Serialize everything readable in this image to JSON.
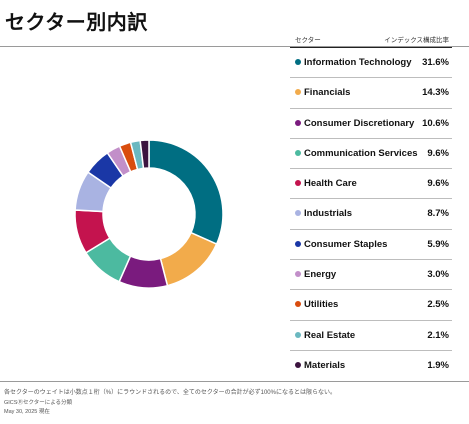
{
  "title": "セクター別内訳",
  "table": {
    "header_sector": "セクター",
    "header_weight": "インデックス構成比率"
  },
  "chart_data": {
    "type": "pie",
    "start_angle_deg": 0,
    "direction": "clockwise",
    "slices": [
      {
        "label": "Information Technology",
        "value": 31.6,
        "display": "31.6%",
        "color": "#006e82"
      },
      {
        "label": "Financials",
        "value": 14.3,
        "display": "14.3%",
        "color": "#f2ab4b"
      },
      {
        "label": "Consumer Discretionary",
        "value": 10.6,
        "display": "10.6%",
        "color": "#7a1b7e"
      },
      {
        "label": "Communication Services",
        "value": 9.6,
        "display": "9.6%",
        "color": "#4cbaa0"
      },
      {
        "label": "Health Care",
        "value": 9.6,
        "display": "9.6%",
        "color": "#c4134e"
      },
      {
        "label": "Industrials",
        "value": 8.7,
        "display": "8.7%",
        "color": "#a9b3e2"
      },
      {
        "label": "Consumer Staples",
        "value": 5.9,
        "display": "5.9%",
        "color": "#1a37a6"
      },
      {
        "label": "Energy",
        "value": 3.0,
        "display": "3.0%",
        "color": "#c28fc9"
      },
      {
        "label": "Utilities",
        "value": 2.5,
        "display": "2.5%",
        "color": "#d94d0e"
      },
      {
        "label": "Real Estate",
        "value": 2.1,
        "display": "2.1%",
        "color": "#6bb8c0"
      },
      {
        "label": "Materials",
        "value": 1.9,
        "display": "1.9%",
        "color": "#3c1440"
      }
    ]
  },
  "notes": {
    "line1": "各セクターのウェイトは小数点１桁（%）にラウンドされるので、全てのセクターの合計が必ず100%になるとは限らない。",
    "line2": "GICSⓇセクターによる分類",
    "line3": "May 30, 2025 現在"
  }
}
